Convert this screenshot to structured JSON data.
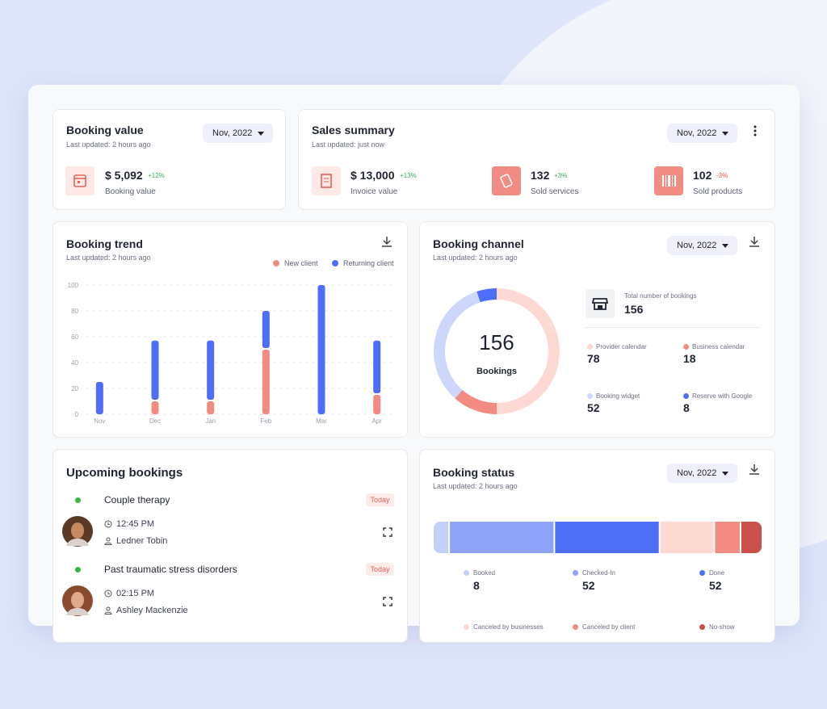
{
  "booking_value": {
    "title": "Booking value",
    "updated": "Last updated: 2 hours ago",
    "period": "Nov, 2022",
    "amount": "$ 5,092",
    "change": "+12%",
    "label": "Booking value"
  },
  "sales_summary": {
    "title": "Sales summary",
    "updated": "Last updated: just now",
    "period": "Nov, 2022",
    "items": [
      {
        "amount": "$ 13,000",
        "change": "+13%",
        "label": "Invoice value"
      },
      {
        "amount": "132",
        "change": "+3%",
        "label": "Sold services"
      },
      {
        "amount": "102",
        "change": "-3%",
        "label": "Sold products"
      }
    ]
  },
  "booking_trend": {
    "title": "Booking trend",
    "updated": "Last updated: 2 hours ago",
    "chart": {
      "type": "bar",
      "stacked": true,
      "categories": [
        "Nov",
        "Dec",
        "Jan",
        "Feb",
        "Mar",
        "Apr"
      ],
      "series": [
        {
          "name": "New client",
          "color": "#f28b82",
          "values": [
            0,
            10,
            10,
            50,
            0,
            15
          ]
        },
        {
          "name": "Returning client",
          "color": "#4f6ef7",
          "values": [
            25,
            47,
            47,
            30,
            100,
            42
          ]
        }
      ],
      "ylim": [
        0,
        100
      ],
      "yticks": [
        0,
        20,
        40,
        60,
        80,
        100
      ],
      "grid": true
    }
  },
  "booking_channel": {
    "title": "Booking channel",
    "updated": "Last updated: 2 hours ago",
    "period": "Nov, 2022",
    "center_value": 156,
    "center_label": "Bookings",
    "total_label": "Total number of bookings",
    "total": 156,
    "chart": {
      "type": "pie",
      "categories": [
        "Provider calendar",
        "Business calendar",
        "Booking widget",
        "Reserve with Google"
      ],
      "values": [
        78,
        18,
        52,
        8
      ],
      "colors": [
        "#fdd9d3",
        "#f28b82",
        "#cdd6fb",
        "#4f6ef7"
      ]
    }
  },
  "upcoming": {
    "title": "Upcoming bookings",
    "items": [
      {
        "title": "Couple therapy",
        "badge": "Today",
        "time": "12:45 PM",
        "person": "Ledner Tobin"
      },
      {
        "title": "Past traumatic stress disorders",
        "badge": "Today",
        "time": "02:15 PM",
        "person": "Ashley Mackenzie"
      }
    ]
  },
  "booking_status": {
    "title": "Booking status",
    "updated": "Last updated: 2 hours ago",
    "period": "Nov, 2022",
    "chart": {
      "type": "bar",
      "stacked": true,
      "categories": [
        "Booked",
        "Checked-In",
        "Done",
        "Canceled by businesses",
        "Canceled by client",
        "No-show"
      ],
      "values": [
        8,
        52,
        52,
        27,
        13,
        10
      ],
      "colors": [
        "#c5cffb",
        "#8fa3f9",
        "#4f6ef7",
        "#fdd9d3",
        "#f28b82",
        "#c9514a"
      ]
    }
  }
}
